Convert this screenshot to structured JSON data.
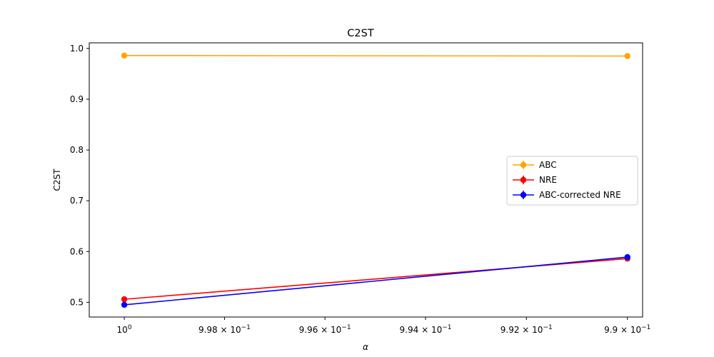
{
  "chart_data": {
    "type": "line",
    "title": "C2ST",
    "xlabel": "α",
    "ylabel": "C2ST",
    "x_scale": "log",
    "x_inverted": true,
    "x": [
      1.0,
      0.99
    ],
    "xlim": [
      1.0007,
      0.9897
    ],
    "ylim": [
      0.471,
      1.011
    ],
    "x_ticks": [
      {
        "value": 1.0,
        "base": "10",
        "exp": "0"
      },
      {
        "value": 0.998,
        "base": "9.98 × 10",
        "exp": "−1"
      },
      {
        "value": 0.996,
        "base": "9.96 × 10",
        "exp": "−1"
      },
      {
        "value": 0.994,
        "base": "9.94 × 10",
        "exp": "−1"
      },
      {
        "value": 0.992,
        "base": "9.92 × 10",
        "exp": "−1"
      },
      {
        "value": 0.99,
        "base": "9.9 × 10",
        "exp": "−1"
      }
    ],
    "y_ticks": [
      {
        "value": 0.5,
        "label": "0.5"
      },
      {
        "value": 0.6,
        "label": "0.6"
      },
      {
        "value": 0.7,
        "label": "0.7"
      },
      {
        "value": 0.8,
        "label": "0.8"
      },
      {
        "value": 0.9,
        "label": "0.9"
      },
      {
        "value": 1.0,
        "label": "1.0"
      }
    ],
    "series": [
      {
        "name": "ABC",
        "color": "#ffa500",
        "values": [
          0.986,
          0.985
        ]
      },
      {
        "name": "NRE",
        "color": "#ff0000",
        "values": [
          0.506,
          0.586
        ]
      },
      {
        "name": "ABC-corrected NRE",
        "color": "#0000ff",
        "values": [
          0.495,
          0.589
        ]
      }
    ],
    "grid": false,
    "legend_position": "center-right"
  }
}
